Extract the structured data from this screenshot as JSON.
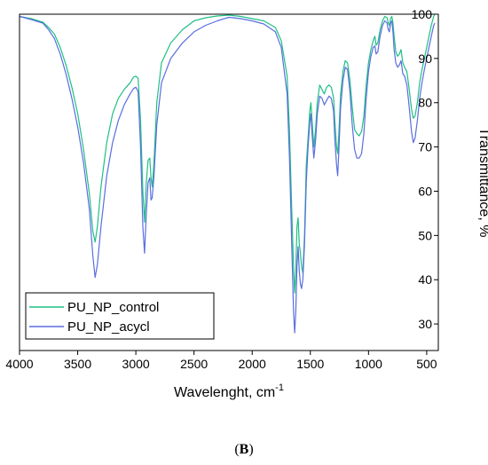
{
  "panel_label": {
    "open": "(",
    "letter": "B",
    "close": ")"
  },
  "chart_data": {
    "type": "line",
    "title": "",
    "xlabel": "Wavelenght, cm",
    "xlabel_superscript": "-1",
    "ylabel": "Transmittance, %",
    "xlim": [
      4000,
      400
    ],
    "ylim": [
      24,
      100
    ],
    "x_reversed": true,
    "xticks": [
      4000,
      3500,
      3000,
      2500,
      2000,
      1500,
      1000,
      500
    ],
    "yticks": [
      30,
      40,
      50,
      60,
      70,
      80,
      90,
      100
    ],
    "y_axis_side": "right",
    "grid": false,
    "legend_position": "bottom-left",
    "series": [
      {
        "name": "PU_NP_control",
        "color": "#1fbf84",
        "points": [
          [
            4000,
            99.5
          ],
          [
            3900,
            99.0
          ],
          [
            3800,
            98.2
          ],
          [
            3750,
            97.0
          ],
          [
            3700,
            95.5
          ],
          [
            3650,
            92.5
          ],
          [
            3600,
            88.5
          ],
          [
            3550,
            83.5
          ],
          [
            3500,
            77.5
          ],
          [
            3450,
            69.5
          ],
          [
            3400,
            59.5
          ],
          [
            3370,
            51.0
          ],
          [
            3350,
            48.5
          ],
          [
            3330,
            52.0
          ],
          [
            3300,
            61.0
          ],
          [
            3250,
            71.0
          ],
          [
            3200,
            77.5
          ],
          [
            3150,
            81.0
          ],
          [
            3100,
            83.0
          ],
          [
            3050,
            84.5
          ],
          [
            3020,
            85.8
          ],
          [
            3000,
            86.0
          ],
          [
            2980,
            85.5
          ],
          [
            2960,
            76.0
          ],
          [
            2940,
            60.0
          ],
          [
            2925,
            53.0
          ],
          [
            2910,
            62.0
          ],
          [
            2895,
            67.0
          ],
          [
            2880,
            67.5
          ],
          [
            2870,
            63.0
          ],
          [
            2860,
            61.0
          ],
          [
            2845,
            66.0
          ],
          [
            2820,
            80.0
          ],
          [
            2780,
            89.0
          ],
          [
            2700,
            93.5
          ],
          [
            2600,
            96.5
          ],
          [
            2500,
            98.5
          ],
          [
            2400,
            99.2
          ],
          [
            2300,
            99.6
          ],
          [
            2200,
            99.8
          ],
          [
            2100,
            99.5
          ],
          [
            2000,
            99.0
          ],
          [
            1900,
            98.5
          ],
          [
            1800,
            97.0
          ],
          [
            1750,
            94.0
          ],
          [
            1700,
            86.0
          ],
          [
            1680,
            74.0
          ],
          [
            1660,
            56.0
          ],
          [
            1645,
            43.0
          ],
          [
            1635,
            37.0
          ],
          [
            1625,
            42.0
          ],
          [
            1615,
            52.0
          ],
          [
            1605,
            54.0
          ],
          [
            1595,
            48.0
          ],
          [
            1585,
            46.0
          ],
          [
            1575,
            43.0
          ],
          [
            1565,
            41.5
          ],
          [
            1550,
            50.0
          ],
          [
            1535,
            66.0
          ],
          [
            1520,
            72.0
          ],
          [
            1505,
            78.0
          ],
          [
            1495,
            80.0
          ],
          [
            1485,
            76.0
          ],
          [
            1470,
            70.0
          ],
          [
            1455,
            74.0
          ],
          [
            1440,
            80.0
          ],
          [
            1420,
            84.0
          ],
          [
            1400,
            83.0
          ],
          [
            1380,
            82.0
          ],
          [
            1360,
            83.5
          ],
          [
            1340,
            84.0
          ],
          [
            1320,
            83.5
          ],
          [
            1300,
            81.0
          ],
          [
            1290,
            76.0
          ],
          [
            1275,
            70.0
          ],
          [
            1265,
            68.5
          ],
          [
            1255,
            73.0
          ],
          [
            1240,
            82.0
          ],
          [
            1220,
            87.0
          ],
          [
            1200,
            89.5
          ],
          [
            1180,
            89.0
          ],
          [
            1160,
            85.0
          ],
          [
            1140,
            79.0
          ],
          [
            1120,
            74.0
          ],
          [
            1100,
            73.0
          ],
          [
            1080,
            72.5
          ],
          [
            1060,
            73.5
          ],
          [
            1040,
            77.0
          ],
          [
            1020,
            84.0
          ],
          [
            1000,
            89.0
          ],
          [
            980,
            92.0
          ],
          [
            960,
            94.0
          ],
          [
            945,
            95.0
          ],
          [
            935,
            93.0
          ],
          [
            920,
            93.5
          ],
          [
            900,
            96.5
          ],
          [
            880,
            98.5
          ],
          [
            860,
            99.5
          ],
          [
            840,
            99.2
          ],
          [
            830,
            98.0
          ],
          [
            820,
            97.5
          ],
          [
            810,
            99.0
          ],
          [
            800,
            99.5
          ],
          [
            790,
            98.0
          ],
          [
            780,
            95.0
          ],
          [
            765,
            91.5
          ],
          [
            750,
            90.5
          ],
          [
            735,
            91.0
          ],
          [
            720,
            92.0
          ],
          [
            705,
            89.0
          ],
          [
            690,
            88.0
          ],
          [
            670,
            87.0
          ],
          [
            650,
            83.0
          ],
          [
            630,
            78.5
          ],
          [
            615,
            76.5
          ],
          [
            600,
            77.0
          ],
          [
            580,
            80.0
          ],
          [
            560,
            84.5
          ],
          [
            540,
            87.5
          ],
          [
            520,
            90.0
          ],
          [
            500,
            92.5
          ],
          [
            480,
            95.0
          ],
          [
            460,
            97.5
          ],
          [
            440,
            99.5
          ],
          [
            430,
            100.0
          ]
        ]
      },
      {
        "name": "PU_NP_acycl",
        "color": "#5a6de0",
        "points": [
          [
            4000,
            99.5
          ],
          [
            3900,
            98.8
          ],
          [
            3800,
            98.0
          ],
          [
            3750,
            96.5
          ],
          [
            3700,
            94.5
          ],
          [
            3650,
            91.0
          ],
          [
            3600,
            86.5
          ],
          [
            3550,
            81.0
          ],
          [
            3500,
            74.5
          ],
          [
            3450,
            66.5
          ],
          [
            3400,
            56.0
          ],
          [
            3370,
            45.5
          ],
          [
            3350,
            40.5
          ],
          [
            3330,
            43.5
          ],
          [
            3300,
            52.0
          ],
          [
            3250,
            63.5
          ],
          [
            3200,
            71.0
          ],
          [
            3150,
            76.0
          ],
          [
            3100,
            79.5
          ],
          [
            3050,
            82.0
          ],
          [
            3020,
            83.2
          ],
          [
            3000,
            83.5
          ],
          [
            2980,
            82.5
          ],
          [
            2960,
            70.0
          ],
          [
            2940,
            52.0
          ],
          [
            2925,
            46.0
          ],
          [
            2910,
            55.0
          ],
          [
            2895,
            62.0
          ],
          [
            2880,
            63.0
          ],
          [
            2870,
            58.0
          ],
          [
            2860,
            58.5
          ],
          [
            2845,
            63.0
          ],
          [
            2820,
            75.0
          ],
          [
            2780,
            84.5
          ],
          [
            2700,
            90.0
          ],
          [
            2600,
            93.5
          ],
          [
            2500,
            96.0
          ],
          [
            2400,
            97.5
          ],
          [
            2300,
            98.5
          ],
          [
            2200,
            99.3
          ],
          [
            2100,
            99.0
          ],
          [
            2000,
            98.5
          ],
          [
            1900,
            97.8
          ],
          [
            1800,
            96.0
          ],
          [
            1750,
            92.5
          ],
          [
            1700,
            82.0
          ],
          [
            1680,
            68.0
          ],
          [
            1660,
            48.0
          ],
          [
            1645,
            33.0
          ],
          [
            1635,
            28.0
          ],
          [
            1625,
            33.0
          ],
          [
            1615,
            43.0
          ],
          [
            1605,
            47.5
          ],
          [
            1595,
            42.0
          ],
          [
            1585,
            39.0
          ],
          [
            1575,
            38.0
          ],
          [
            1565,
            40.0
          ],
          [
            1550,
            48.0
          ],
          [
            1535,
            62.0
          ],
          [
            1520,
            70.0
          ],
          [
            1505,
            75.5
          ],
          [
            1495,
            77.5
          ],
          [
            1485,
            73.0
          ],
          [
            1470,
            67.5
          ],
          [
            1455,
            71.5
          ],
          [
            1440,
            77.5
          ],
          [
            1420,
            81.5
          ],
          [
            1400,
            81.0
          ],
          [
            1380,
            79.5
          ],
          [
            1360,
            80.5
          ],
          [
            1340,
            81.5
          ],
          [
            1320,
            81.0
          ],
          [
            1300,
            78.0
          ],
          [
            1290,
            72.0
          ],
          [
            1275,
            66.0
          ],
          [
            1265,
            63.5
          ],
          [
            1255,
            69.0
          ],
          [
            1240,
            79.0
          ],
          [
            1220,
            85.0
          ],
          [
            1200,
            88.0
          ],
          [
            1180,
            87.5
          ],
          [
            1160,
            82.5
          ],
          [
            1140,
            75.0
          ],
          [
            1120,
            69.5
          ],
          [
            1100,
            67.5
          ],
          [
            1080,
            67.5
          ],
          [
            1060,
            68.5
          ],
          [
            1040,
            73.0
          ],
          [
            1020,
            81.0
          ],
          [
            1000,
            87.0
          ],
          [
            980,
            90.5
          ],
          [
            960,
            92.5
          ],
          [
            945,
            92.8
          ],
          [
            935,
            91.0
          ],
          [
            920,
            91.5
          ],
          [
            900,
            95.0
          ],
          [
            880,
            97.5
          ],
          [
            860,
            98.5
          ],
          [
            840,
            98.0
          ],
          [
            830,
            96.5
          ],
          [
            820,
            96.0
          ],
          [
            810,
            98.0
          ],
          [
            800,
            98.5
          ],
          [
            790,
            96.0
          ],
          [
            780,
            92.0
          ],
          [
            765,
            89.0
          ],
          [
            750,
            88.0
          ],
          [
            735,
            88.5
          ],
          [
            720,
            89.5
          ],
          [
            705,
            86.5
          ],
          [
            690,
            86.0
          ],
          [
            670,
            84.0
          ],
          [
            650,
            79.0
          ],
          [
            630,
            73.5
          ],
          [
            615,
            71.0
          ],
          [
            600,
            72.0
          ],
          [
            580,
            76.0
          ],
          [
            560,
            81.0
          ],
          [
            540,
            84.5
          ],
          [
            520,
            87.5
          ],
          [
            500,
            90.0
          ],
          [
            480,
            92.5
          ],
          [
            460,
            95.0
          ],
          [
            440,
            97.5
          ],
          [
            430,
            98.0
          ]
        ]
      }
    ]
  }
}
